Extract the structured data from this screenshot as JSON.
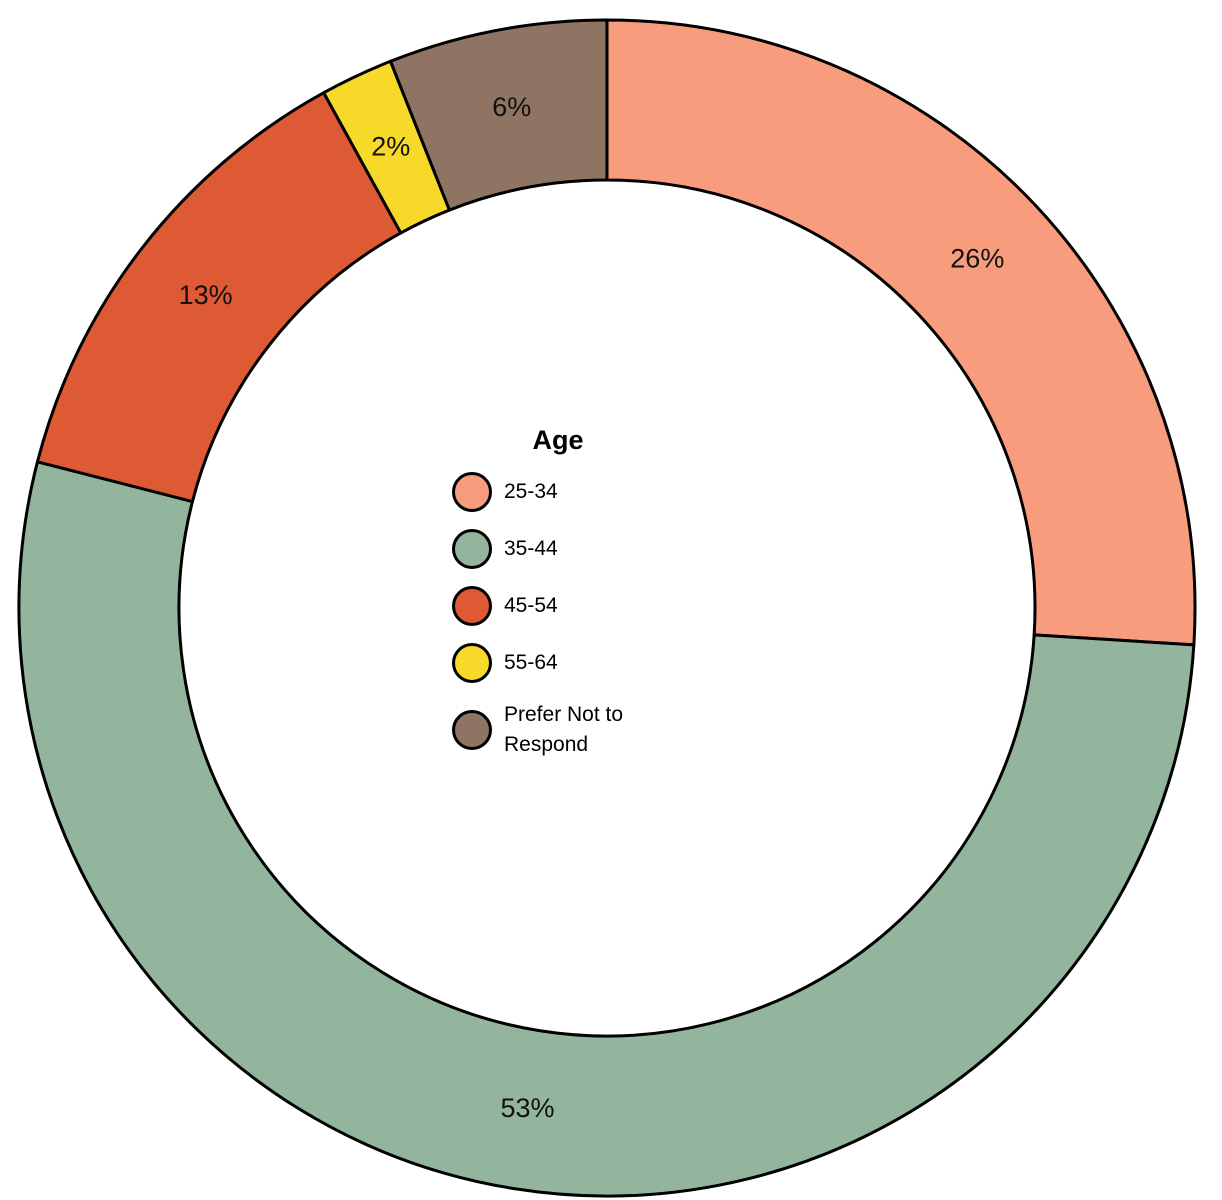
{
  "chart_data": {
    "type": "donut",
    "legend_title": "Age",
    "categories": [
      "25-34",
      "35-44",
      "45-54",
      "55-64",
      "Prefer Not to Respond"
    ],
    "values": [
      26,
      53,
      13,
      2,
      6
    ],
    "value_labels": [
      "26%",
      "53%",
      "13%",
      "2%",
      "6%"
    ],
    "colors": [
      "#f89c7e",
      "#94b59d",
      "#dd5a35",
      "#f7d92a",
      "#8f7363"
    ],
    "legend": "center"
  }
}
